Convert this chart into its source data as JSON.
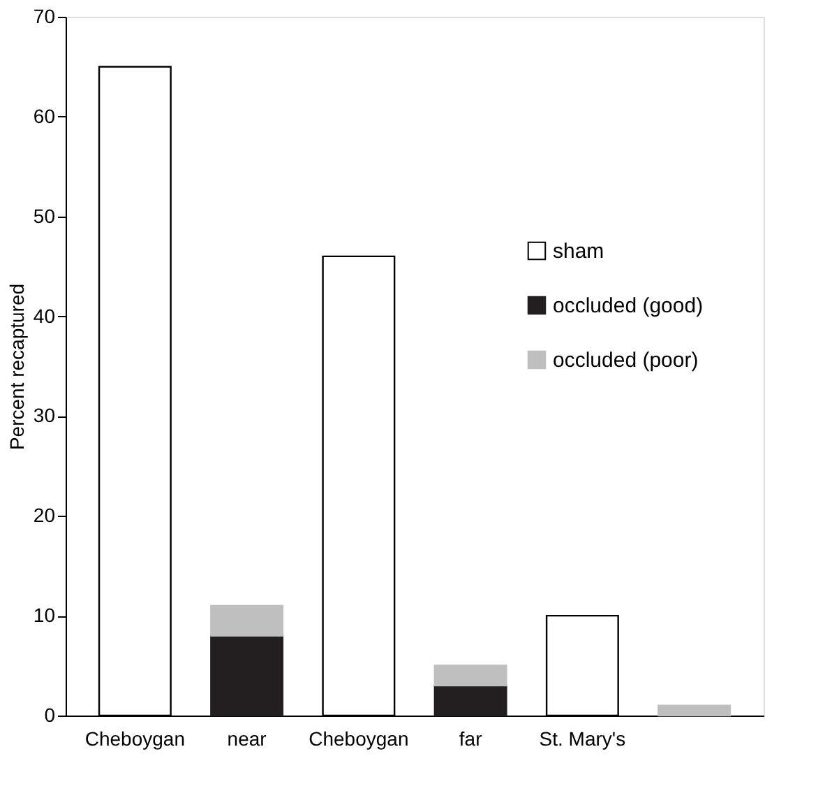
{
  "chart_data": {
    "type": "bar",
    "ylabel": "Percent recaptured",
    "categories": [
      "Cheboygan",
      "near",
      "Cheboygan",
      "far",
      "St. Mary's",
      null
    ],
    "series": [
      {
        "name": "sham",
        "color": "#ffffff",
        "values": [
          65,
          null,
          46,
          null,
          10,
          null
        ]
      },
      {
        "name": "occluded (good)",
        "color": "#231f20",
        "values": [
          null,
          8,
          null,
          3,
          null,
          0
        ]
      },
      {
        "name": "occluded (poor)",
        "color": "#bfbfbf",
        "values": [
          null,
          3,
          null,
          2,
          null,
          1
        ]
      }
    ],
    "stacked": true,
    "ylim": [
      0,
      70
    ],
    "yticks": [
      0,
      10,
      20,
      30,
      40,
      50,
      60,
      70
    ],
    "grid": false,
    "legend": "right"
  }
}
